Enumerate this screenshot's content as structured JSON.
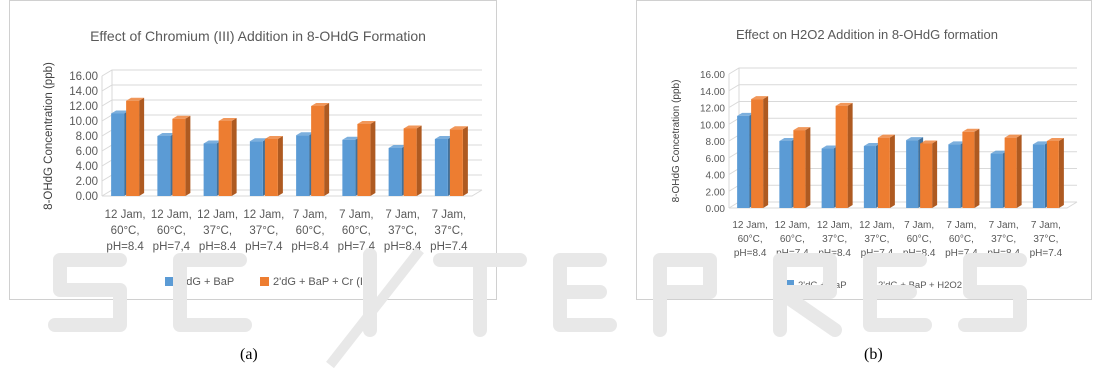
{
  "colors": {
    "blue": "#5b9bd5",
    "blue_dark": "#41719c",
    "orange": "#ed7d31",
    "orange_dark": "#ae5a21",
    "grid": "#d9d9d9",
    "text": "#595959"
  },
  "chart_data": [
    {
      "type": "bar",
      "title": "Effect of Chromium (III) Addition in 8-OHdG Formation",
      "ylabel": "8-OHdG Concentration (ppb)",
      "xlabel": "",
      "ylim": [
        0,
        16
      ],
      "yticks": [
        "0.00",
        "2.00",
        "4.00",
        "6.00",
        "8.00",
        "10.00",
        "12.00",
        "14.00",
        "16.00"
      ],
      "grid": true,
      "legend_position": "bottom",
      "categories": [
        [
          "12 Jam,",
          "60°C,",
          "pH=8.4"
        ],
        [
          "12 Jam,",
          "60°C,",
          "pH=7,4"
        ],
        [
          "12 Jam,",
          "37°C,",
          "pH=8.4"
        ],
        [
          "12 Jam,",
          "37°C,",
          "pH=7.4"
        ],
        [
          "7 Jam,",
          "60°C,",
          "pH=8.4"
        ],
        [
          "7 Jam,",
          "60°C,",
          "pH=7.4"
        ],
        [
          "7 Jam,",
          "37°C,",
          "pH=8.4"
        ],
        [
          "7 Jam,",
          "37°C,",
          "pH=7.4"
        ]
      ],
      "series": [
        {
          "name": "2'dG + BaP",
          "values": [
            11.0,
            8.0,
            7.0,
            7.3,
            8.1,
            7.5,
            6.4,
            7.6
          ]
        },
        {
          "name": "2'dG + BaP + Cr (III)",
          "values": [
            12.7,
            10.3,
            10.0,
            7.6,
            12.0,
            9.6,
            9.0,
            8.9
          ]
        }
      ]
    },
    {
      "type": "bar",
      "title": "Effect on H2O2 Addition in 8-OHdG formation",
      "ylabel": "8-OHdG Concetration (ppb)",
      "xlabel": "",
      "ylim": [
        0,
        16
      ],
      "yticks": [
        "0.00",
        "2.00",
        "4.00",
        "6.00",
        "8.00",
        "10.00",
        "12.00",
        "14.00",
        "16.00"
      ],
      "grid": true,
      "legend_position": "bottom",
      "categories": [
        [
          "12 Jam,",
          "60°C,",
          "pH=8.4"
        ],
        [
          "12 Jam,",
          "60°C,",
          "pH=7,4"
        ],
        [
          "12 Jam,",
          "37°C,",
          "pH=8.4"
        ],
        [
          "12 Jam,",
          "37°C,",
          "pH=7.4"
        ],
        [
          "7 Jam,",
          "60°C,",
          "pH=8.4"
        ],
        [
          "7 Jam,",
          "60°C,",
          "pH=7.4"
        ],
        [
          "7 Jam,",
          "37°C,",
          "pH=8.4"
        ],
        [
          "7 Jam,",
          "37°C,",
          "pH=7.4"
        ]
      ],
      "series": [
        {
          "name": "2'dG + BaP",
          "values": [
            11.0,
            8.0,
            7.1,
            7.4,
            8.1,
            7.6,
            6.5,
            7.6
          ]
        },
        {
          "name": "2'dG + BaP + H2O2",
          "values": [
            13.0,
            9.3,
            12.2,
            8.4,
            7.7,
            9.1,
            8.4,
            8.0
          ]
        }
      ]
    }
  ],
  "captions": {
    "a": "(a)",
    "b": "(b)"
  }
}
